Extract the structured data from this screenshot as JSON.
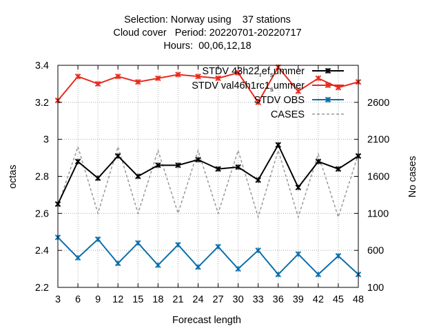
{
  "chart_data": {
    "type": "line",
    "title_lines": [
      "Selection: Norway using    37 stations",
      "Cloud cover   Period: 20220701-20220717",
      "Hours:  00,06,12,18"
    ],
    "xlabel": "Forecast length",
    "ylabel": "octas",
    "y2label": "No cases",
    "x": [
      3,
      6,
      9,
      12,
      15,
      18,
      21,
      24,
      27,
      30,
      33,
      36,
      39,
      42,
      45,
      48
    ],
    "ylim": [
      2.2,
      3.4
    ],
    "y2lim": [
      100,
      3100
    ],
    "yticks": [
      "2.2",
      "2.4",
      "2.6",
      "2.8",
      "3",
      "3.2",
      "3.4"
    ],
    "y2ticks": [
      "100",
      "600",
      "1100",
      "1600",
      "2100",
      "2600"
    ],
    "grid": true,
    "legend_position": "top-right",
    "series": [
      {
        "name": "STDV 43h22_ref_summer",
        "legend_parts": [
          "STDV 43h22",
          "r",
          "ef",
          "s",
          "ummer"
        ],
        "color": "#000000",
        "axis": "y",
        "marker": "x",
        "values": [
          2.65,
          2.88,
          2.79,
          2.91,
          2.8,
          2.86,
          2.86,
          2.89,
          2.84,
          2.85,
          2.78,
          2.97,
          2.74,
          2.88,
          2.84,
          2.91
        ]
      },
      {
        "name": "STDV val46h1rc1_summer",
        "legend_parts": [
          "STDV val46h1rc1",
          "s",
          "ummer"
        ],
        "color": "#e8291c",
        "axis": "y",
        "marker": "x",
        "values": [
          3.21,
          3.34,
          3.3,
          3.34,
          3.31,
          3.33,
          3.35,
          3.34,
          3.33,
          3.36,
          3.2,
          3.39,
          3.26,
          3.33,
          3.28,
          3.31
        ]
      },
      {
        "name": "STDV OBS",
        "color": "#0a6ea8",
        "axis": "y",
        "marker": "x",
        "values": [
          2.47,
          2.36,
          2.46,
          2.33,
          2.44,
          2.32,
          2.43,
          2.31,
          2.42,
          2.3,
          2.4,
          2.27,
          2.38,
          2.27,
          2.37,
          2.27
        ]
      },
      {
        "name": "CASES",
        "color": "#999999",
        "axis": "y2",
        "dashed": true,
        "values": [
          1200,
          2000,
          1100,
          2000,
          1100,
          1950,
          1100,
          1950,
          1100,
          1950,
          1050,
          1950,
          1050,
          1900,
          1050,
          1900
        ]
      }
    ]
  }
}
